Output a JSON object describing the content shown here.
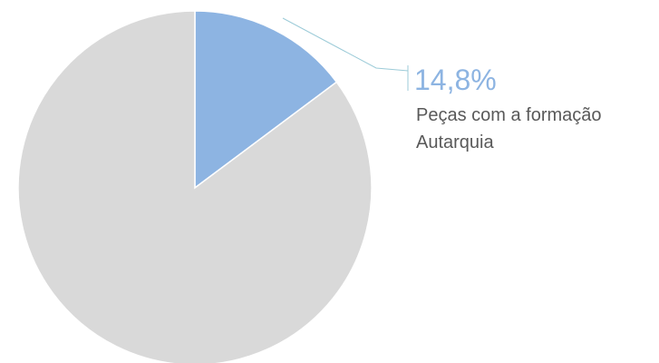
{
  "chart_data": {
    "type": "pie",
    "categories": [
      "Peças com a formação Autarquia",
      null
    ],
    "values": [
      14.8,
      85.2
    ],
    "value_labels": [
      "14,8%",
      null
    ],
    "colors": [
      "#8db4e2",
      "#d9d9d9"
    ]
  }
}
